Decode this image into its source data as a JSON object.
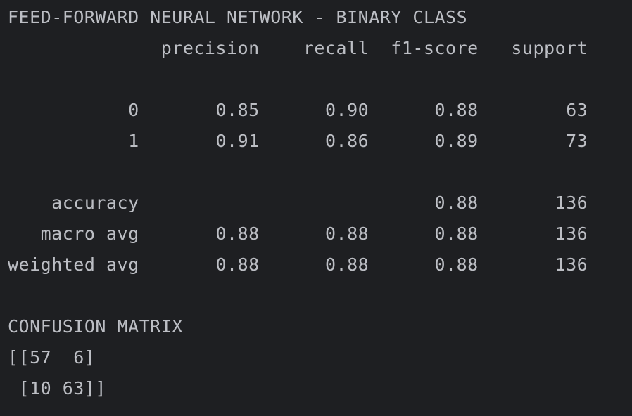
{
  "console": {
    "title": "FEED-FORWARD NEURAL NETWORK - BINARY CLASS",
    "report_lines": [
      "              precision    recall  f1-score   support",
      "",
      "           0       0.85      0.90      0.88        63",
      "           1       0.91      0.86      0.89        73",
      "",
      "    accuracy                           0.88       136",
      "   macro avg       0.88      0.88      0.88       136",
      "weighted avg       0.88      0.88      0.88       136"
    ],
    "confusion_title": "CONFUSION MATRIX",
    "matrix_lines": [
      "[[57  6]",
      " [10 63]]"
    ]
  }
}
